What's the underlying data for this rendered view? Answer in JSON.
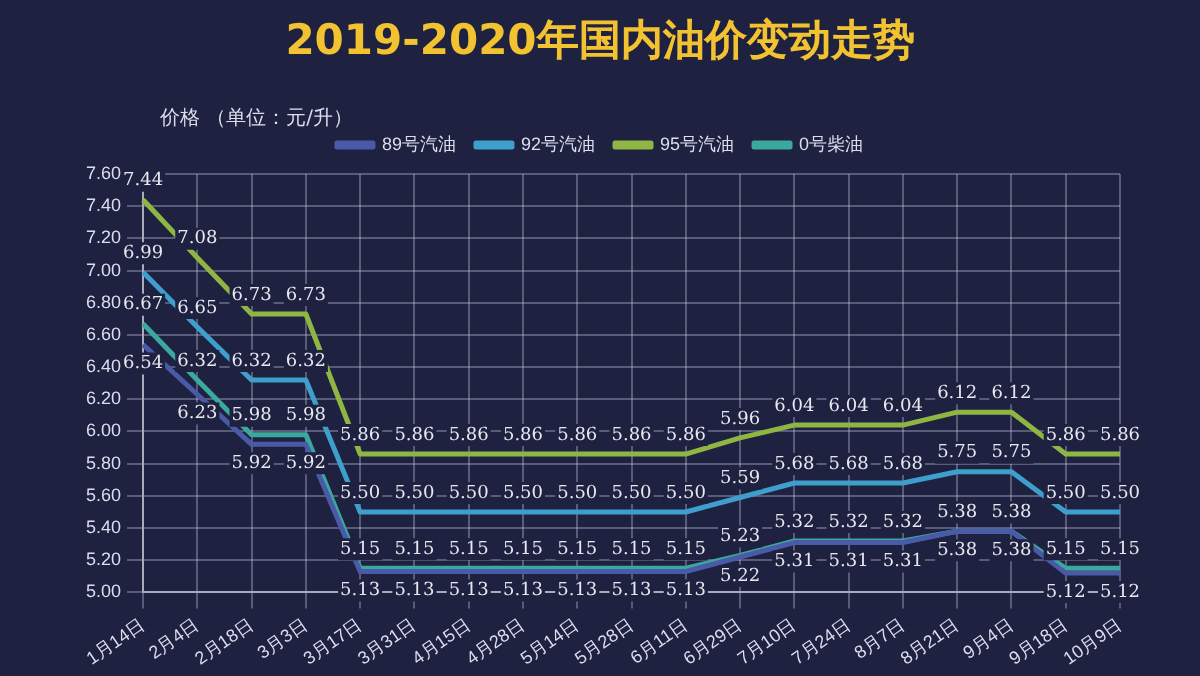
{
  "chart_data": {
    "type": "line",
    "title": "2019-2020年国内油价变动走势",
    "ylabel": "价格 （单位：元/升）",
    "categories": [
      "1月14日",
      "2月4日",
      "2月18日",
      "3月3日",
      "3月17日",
      "3月31日",
      "4月15日",
      "4月28日",
      "5月14日",
      "5月28日",
      "6月11日",
      "6月29日",
      "7月10日",
      "7月24日",
      "8月7日",
      "8月21日",
      "9月4日",
      "9月18日",
      "10月9日"
    ],
    "series": [
      {
        "name": "89号汽油",
        "color": "#4a5aa8",
        "values": [
          6.54,
          6.23,
          5.92,
          5.92,
          5.13,
          5.13,
          5.13,
          5.13,
          5.13,
          5.13,
          5.13,
          5.22,
          5.31,
          5.31,
          5.31,
          5.38,
          5.38,
          5.12,
          5.12
        ],
        "value_labels": [
          "6.54",
          "6.23",
          "5.92",
          "5.92",
          "5.13",
          "5.13",
          "5.13",
          "5.13",
          "5.13",
          "5.13",
          "5.13",
          "5.22",
          "5.31",
          "5.31",
          "5.31",
          "5.38",
          "5.38",
          "5.12",
          "5.12"
        ]
      },
      {
        "name": "92号汽油",
        "color": "#3f9fcc",
        "values": [
          6.99,
          6.65,
          6.32,
          6.32,
          5.5,
          5.5,
          5.5,
          5.5,
          5.5,
          5.5,
          5.5,
          5.59,
          5.68,
          5.68,
          5.68,
          5.75,
          5.75,
          5.5,
          5.5
        ],
        "value_labels": [
          "6.99",
          "6.65",
          "6.32",
          "6.32",
          "5.50",
          "5.50",
          "5.50",
          "5.50",
          "5.50",
          "5.50",
          "5.50",
          "5.59",
          "5.68",
          "5.68",
          "5.68",
          "5.75",
          "5.75",
          "5.50",
          "5.50"
        ]
      },
      {
        "name": "95号汽油",
        "color": "#8fb543",
        "values": [
          7.44,
          7.08,
          6.73,
          6.73,
          5.86,
          5.86,
          5.86,
          5.86,
          5.86,
          5.86,
          5.86,
          5.96,
          6.04,
          6.04,
          6.04,
          6.12,
          6.12,
          5.86,
          5.86
        ],
        "value_labels": [
          "7.44",
          "7.08",
          "6.73",
          "6.73",
          "5.86",
          "5.86",
          "5.86",
          "5.86",
          "5.86",
          "5.86",
          "5.86",
          "5.96",
          "6.04",
          "6.04",
          "6.04",
          "6.12",
          "6.12",
          "5.86",
          "5.86"
        ]
      },
      {
        "name": "0号柴油",
        "color": "#3aa89c",
        "values": [
          6.67,
          6.32,
          5.98,
          5.98,
          5.15,
          5.15,
          5.15,
          5.15,
          5.15,
          5.15,
          5.15,
          5.23,
          5.32,
          5.32,
          5.32,
          5.38,
          5.38,
          5.15,
          5.15
        ],
        "value_labels": [
          "6.67",
          "6.32",
          "5.98",
          "5.98",
          "5.15",
          "5.15",
          "5.15",
          "5.15",
          "5.15",
          "5.15",
          "5.15",
          "5.23",
          "5.32",
          "5.32",
          "5.32",
          "5.38",
          "5.38",
          "5.15",
          "5.15"
        ]
      }
    ],
    "ylim": [
      5.0,
      7.6
    ],
    "yticks": [
      {
        "value": 5.0,
        "label": "5.00"
      },
      {
        "value": 5.2,
        "label": "5.20"
      },
      {
        "value": 5.4,
        "label": "5.40"
      },
      {
        "value": 5.6,
        "label": "5.60"
      },
      {
        "value": 5.8,
        "label": "5.80"
      },
      {
        "value": 6.0,
        "label": "6.00"
      },
      {
        "value": 6.2,
        "label": "6.20"
      },
      {
        "value": 6.4,
        "label": "6.40"
      },
      {
        "value": 6.6,
        "label": "6.60"
      },
      {
        "value": 6.8,
        "label": "6.80"
      },
      {
        "value": 7.0,
        "label": "7.00"
      },
      {
        "value": 7.2,
        "label": "7.20"
      },
      {
        "value": 7.4,
        "label": "7.40"
      },
      {
        "value": 7.6,
        "label": "7.60"
      }
    ],
    "grid": true,
    "legend": "top",
    "marker": "none",
    "line_style": "solid"
  }
}
